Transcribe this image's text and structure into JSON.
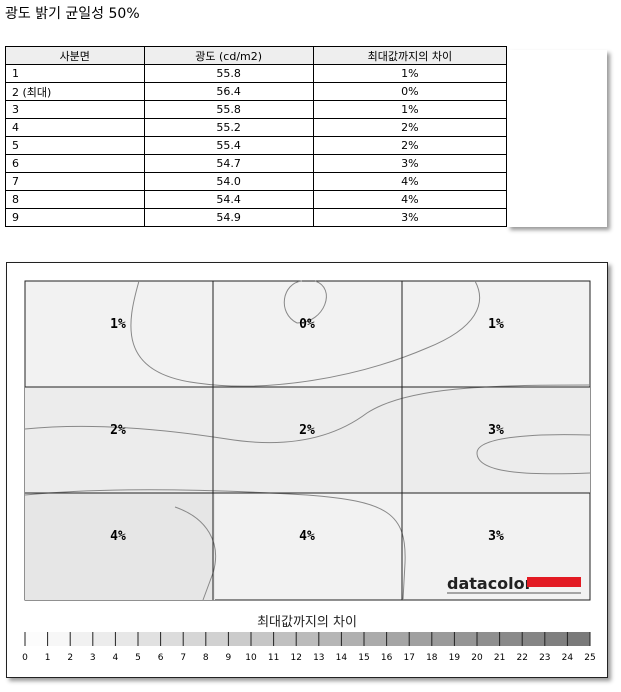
{
  "title": "광도 밝기 균일성 50%",
  "table": {
    "headers": [
      "사분면",
      "광도 (cd/m2)",
      "최대값까지의 차이"
    ],
    "rows": [
      [
        "1",
        "55.8",
        "1%"
      ],
      [
        "2 (최대)",
        "56.4",
        "0%"
      ],
      [
        "3",
        "55.8",
        "1%"
      ],
      [
        "4",
        "55.2",
        "2%"
      ],
      [
        "5",
        "55.4",
        "2%"
      ],
      [
        "6",
        "54.7",
        "3%"
      ],
      [
        "7",
        "54.0",
        "4%"
      ],
      [
        "8",
        "54.4",
        "4%"
      ],
      [
        "9",
        "54.9",
        "3%"
      ]
    ]
  },
  "chart_data": {
    "type": "heatmap",
    "grid": [
      [
        "1%",
        "0%",
        "1%"
      ],
      [
        "2%",
        "2%",
        "3%"
      ],
      [
        "4%",
        "4%",
        "3%"
      ]
    ],
    "legend_title": "최대값까지의 차이",
    "scale_ticks": [
      "0",
      "1",
      "2",
      "3",
      "4",
      "5",
      "6",
      "7",
      "8",
      "9",
      "10",
      "11",
      "12",
      "13",
      "14",
      "15",
      "16",
      "17",
      "18",
      "19",
      "20",
      "21",
      "22",
      "23",
      "24",
      "25"
    ],
    "logo": "datacolor",
    "colors": {
      "logo_bar": "#e31b23",
      "scale_max": "#777777"
    }
  }
}
